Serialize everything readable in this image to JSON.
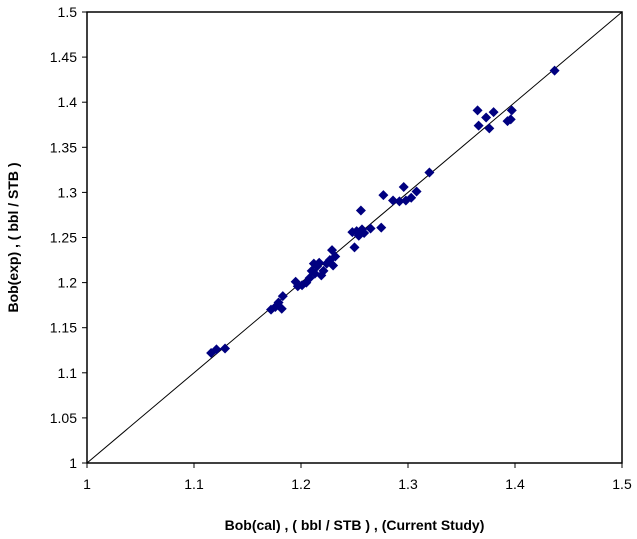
{
  "chart_data": {
    "type": "scatter",
    "title": "",
    "xlabel": "Bob(cal) , ( bbl / STB ) ,  (Current Study)",
    "ylabel": "Bob(exp) ,  ( bbl / STB )",
    "xlim": [
      1,
      1.5
    ],
    "ylim": [
      1,
      1.5
    ],
    "x_ticks": [
      "1",
      "1.1",
      "1.2",
      "1.3",
      "1.4",
      "1.5"
    ],
    "y_ticks": [
      "1",
      "1.05",
      "1.1",
      "1.15",
      "1.2",
      "1.25",
      "1.3",
      "1.35",
      "1.4",
      "1.45",
      "1.5"
    ],
    "grid": false,
    "legend": "none",
    "marker": "diamond",
    "marker_color": "#000080",
    "reference_line": {
      "type": "y=x",
      "from": [
        1,
        1
      ],
      "to": [
        1.5,
        1.5
      ]
    },
    "series": [
      {
        "points": [
          [
            1.116,
            1.122
          ],
          [
            1.121,
            1.126
          ],
          [
            1.129,
            1.127
          ],
          [
            1.172,
            1.17
          ],
          [
            1.176,
            1.173
          ],
          [
            1.179,
            1.178
          ],
          [
            1.182,
            1.171
          ],
          [
            1.183,
            1.185
          ],
          [
            1.195,
            1.201
          ],
          [
            1.197,
            1.196
          ],
          [
            1.201,
            1.197
          ],
          [
            1.205,
            1.2
          ],
          [
            1.208,
            1.205
          ],
          [
            1.21,
            1.213
          ],
          [
            1.212,
            1.221
          ],
          [
            1.213,
            1.21
          ],
          [
            1.215,
            1.218
          ],
          [
            1.217,
            1.222
          ],
          [
            1.219,
            1.208
          ],
          [
            1.221,
            1.213
          ],
          [
            1.224,
            1.221
          ],
          [
            1.227,
            1.225
          ],
          [
            1.229,
            1.236
          ],
          [
            1.23,
            1.219
          ],
          [
            1.232,
            1.229
          ],
          [
            1.248,
            1.256
          ],
          [
            1.25,
            1.239
          ],
          [
            1.252,
            1.257
          ],
          [
            1.254,
            1.252
          ],
          [
            1.256,
            1.28
          ],
          [
            1.257,
            1.259
          ],
          [
            1.259,
            1.255
          ],
          [
            1.265,
            1.26
          ],
          [
            1.275,
            1.261
          ],
          [
            1.277,
            1.297
          ],
          [
            1.286,
            1.291
          ],
          [
            1.292,
            1.29
          ],
          [
            1.296,
            1.306
          ],
          [
            1.298,
            1.291
          ],
          [
            1.303,
            1.294
          ],
          [
            1.308,
            1.301
          ],
          [
            1.32,
            1.322
          ],
          [
            1.365,
            1.391
          ],
          [
            1.366,
            1.374
          ],
          [
            1.373,
            1.383
          ],
          [
            1.376,
            1.371
          ],
          [
            1.38,
            1.389
          ],
          [
            1.393,
            1.379
          ],
          [
            1.396,
            1.381
          ],
          [
            1.397,
            1.391
          ],
          [
            1.437,
            1.435
          ]
        ]
      }
    ]
  }
}
